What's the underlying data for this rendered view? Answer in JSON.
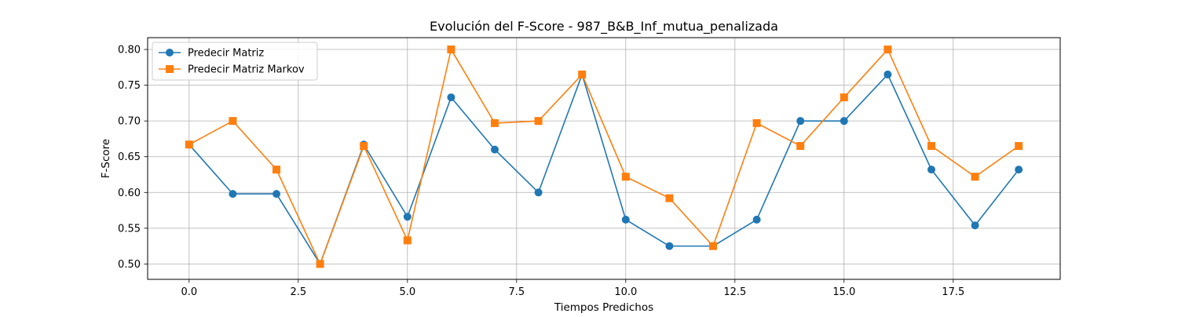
{
  "chart_data": {
    "type": "line",
    "title": "Evolución del F-Score - 987_B&B_Inf_mutua_penalizada",
    "xlabel": "Tiempos Predichos",
    "ylabel": "F-Score",
    "xlim": [
      -0.95,
      19.95
    ],
    "ylim": [
      0.4785,
      0.8165
    ],
    "x_ticks": [
      0.0,
      2.5,
      5.0,
      7.5,
      10.0,
      12.5,
      15.0,
      17.5
    ],
    "x_tick_labels": [
      "0.0",
      "2.5",
      "5.0",
      "7.5",
      "10.0",
      "12.5",
      "15.0",
      "17.5"
    ],
    "y_ticks": [
      0.5,
      0.55,
      0.6,
      0.65,
      0.7,
      0.75,
      0.8
    ],
    "y_tick_labels": [
      "0.50",
      "0.55",
      "0.60",
      "0.65",
      "0.70",
      "0.75",
      "0.80"
    ],
    "grid": true,
    "legend_position": "upper-left",
    "x": [
      0,
      1,
      2,
      3,
      4,
      5,
      6,
      7,
      8,
      9,
      10,
      11,
      12,
      13,
      14,
      15,
      16,
      17,
      18,
      19
    ],
    "series": [
      {
        "name": "Predecir Matriz",
        "color": "#1f77b4",
        "marker": "circle",
        "values": [
          0.667,
          0.598,
          0.598,
          0.5,
          0.667,
          0.566,
          0.733,
          0.66,
          0.6,
          0.765,
          0.562,
          0.525,
          0.525,
          0.562,
          0.7,
          0.7,
          0.765,
          0.632,
          0.554,
          0.632
        ]
      },
      {
        "name": "Predecir Matriz Markov",
        "color": "#ff7f0e",
        "marker": "square",
        "values": [
          0.667,
          0.7,
          0.632,
          0.5,
          0.665,
          0.533,
          0.8,
          0.697,
          0.7,
          0.765,
          0.622,
          0.592,
          0.525,
          0.697,
          0.665,
          0.733,
          0.8,
          0.665,
          0.622,
          0.665
        ]
      }
    ]
  }
}
